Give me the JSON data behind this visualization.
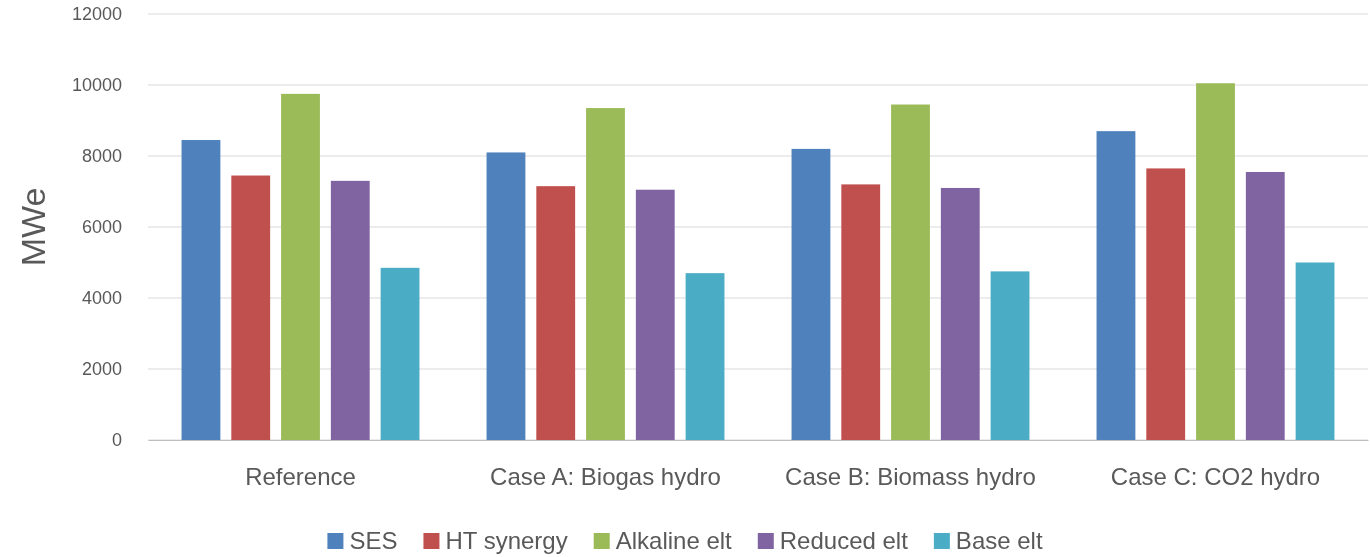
{
  "chart_data": {
    "type": "bar",
    "ylabel": "MWe",
    "categories": [
      "Reference",
      "Case A: Biogas hydro",
      "Case B: Biomass hydro",
      "Case C: CO2 hydro"
    ],
    "series": [
      {
        "name": "SES",
        "color": "#4f81bd",
        "values": [
          8450,
          8100,
          8200,
          8700
        ]
      },
      {
        "name": "HT synergy",
        "color": "#c0504d",
        "values": [
          7450,
          7150,
          7200,
          7650
        ]
      },
      {
        "name": "Alkaline elt",
        "color": "#9bbb59",
        "values": [
          9750,
          9350,
          9450,
          10050
        ]
      },
      {
        "name": "Reduced elt",
        "color": "#8064a2",
        "values": [
          7300,
          7050,
          7100,
          7550
        ]
      },
      {
        "name": "Base elt",
        "color": "#4bacc6",
        "values": [
          4850,
          4700,
          4750,
          5000
        ]
      }
    ],
    "ylim": [
      0,
      12000
    ],
    "yticks": [
      0,
      2000,
      4000,
      6000,
      8000,
      10000,
      12000
    ],
    "grid": "y",
    "legend": "bottom"
  }
}
